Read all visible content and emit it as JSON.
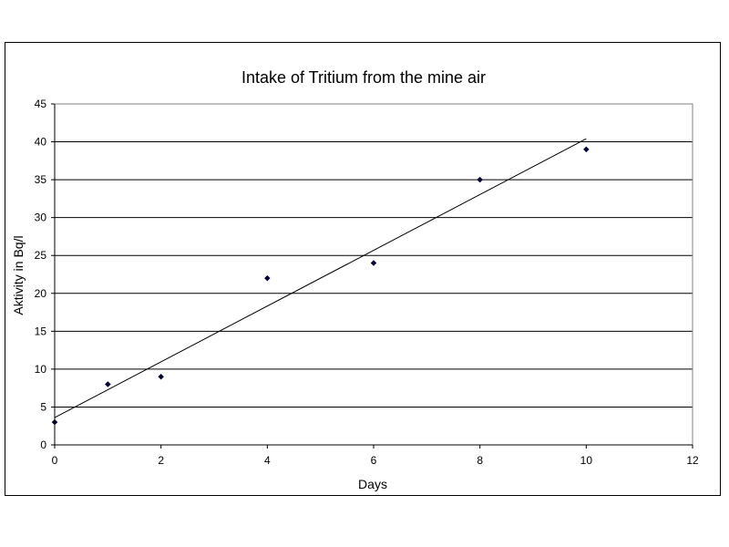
{
  "chart_data": {
    "type": "scatter",
    "title": "Intake of Tritium from the mine air",
    "xlabel": "Days",
    "ylabel": "Aktivity in Bq/l",
    "xlim": [
      0,
      12
    ],
    "ylim": [
      0,
      45
    ],
    "x_ticks": [
      "0",
      "2",
      "4",
      "6",
      "8",
      "10",
      "12"
    ],
    "y_ticks": [
      "0",
      "5",
      "10",
      "15",
      "20",
      "25",
      "30",
      "35",
      "40",
      "45"
    ],
    "grid": "horizontal",
    "legend": "none",
    "series": [
      {
        "x": [
          0,
          1,
          2,
          4,
          6,
          8,
          10
        ],
        "y": [
          3,
          8,
          9,
          22,
          24,
          35,
          39
        ],
        "marker": "diamond",
        "color": "#000033"
      }
    ],
    "trendline": {
      "type": "linear",
      "x": [
        0,
        10
      ],
      "y": [
        3.6,
        40.4
      ],
      "color": "#000000"
    }
  }
}
